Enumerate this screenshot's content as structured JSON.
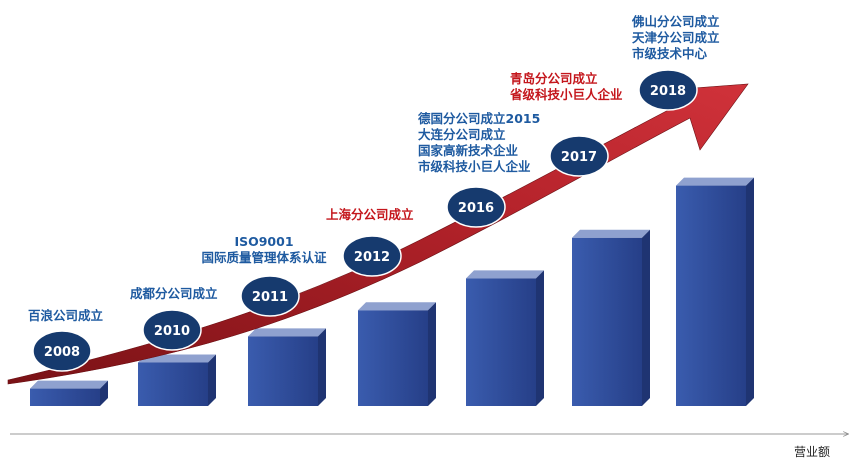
{
  "chart_data": {
    "type": "bar",
    "categories": [
      "2008",
      "2010",
      "2011",
      "2012",
      "2016",
      "2017",
      "2018"
    ],
    "values": [
      12,
      30,
      48,
      66,
      88,
      116,
      152
    ],
    "xlabel": "营业额",
    "milestones": [
      {
        "year": "2008",
        "lines": [
          "百浪公司成立"
        ],
        "color": "#1e5aa0"
      },
      {
        "year": "2010",
        "lines": [
          "成都分公司成立"
        ],
        "color": "#1e5aa0"
      },
      {
        "year": "2011",
        "lines": [
          "ISO9001",
          "国际质量管理体系认证"
        ],
        "color": "#1e5aa0"
      },
      {
        "year": "2012",
        "lines": [
          "上海分公司成立"
        ],
        "color": "#c4161c"
      },
      {
        "year": "2016",
        "lines": [
          "德国分公司成立2015",
          "大连分公司成立",
          "国家高新技术企业",
          "市级科技小巨人企业"
        ],
        "color": "#1e5aa0"
      },
      {
        "year": "2017",
        "lines": [
          "青岛分公司成立",
          "省级科技小巨人企业"
        ],
        "color": "#c4161c"
      },
      {
        "year": "2018",
        "lines": [
          "佛山分公司成立",
          "天津分公司成立",
          "市级技术中心"
        ],
        "color": "#1e5aa0"
      }
    ]
  },
  "colors": {
    "bar_front": "#2e4b97",
    "bar_side": "#1f3472",
    "bar_top": "#8fa1cf",
    "arrow": "#a81f24",
    "badge": "#163a6e",
    "label_blue": "#1e5aa0",
    "label_red": "#c4161c"
  }
}
